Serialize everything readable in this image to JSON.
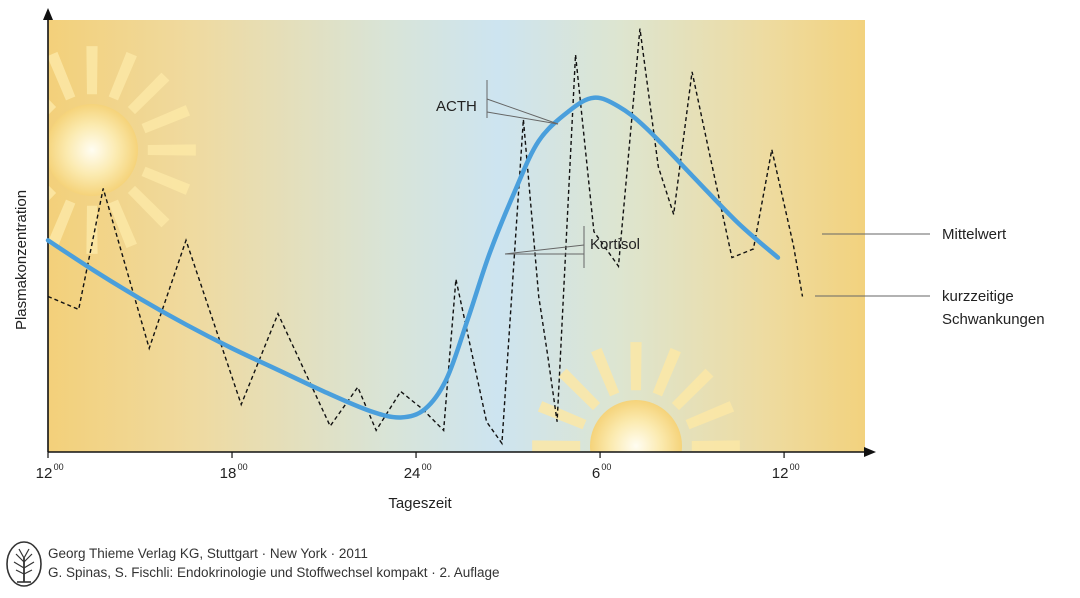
{
  "chart_data": {
    "type": "line",
    "title": "",
    "xlabel": "Tageszeit",
    "ylabel": "Plasmakonzentration",
    "x_ticks": [
      {
        "hour": 0,
        "label": "12",
        "sup": "00"
      },
      {
        "hour": 6,
        "label": "18",
        "sup": "00"
      },
      {
        "hour": 12,
        "label": "24",
        "sup": "00"
      },
      {
        "hour": 18,
        "label": "6",
        "sup": "00"
      },
      {
        "hour": 24,
        "label": "12",
        "sup": "00"
      }
    ],
    "series": [
      {
        "name": "Mittelwert",
        "style": "solid",
        "color": "#4a9fdc",
        "points": [
          [
            0,
            0.49
          ],
          [
            1.5,
            0.42
          ],
          [
            3,
            0.355
          ],
          [
            4.5,
            0.295
          ],
          [
            6,
            0.24
          ],
          [
            7.5,
            0.19
          ],
          [
            9,
            0.14
          ],
          [
            10.5,
            0.095
          ],
          [
            11.5,
            0.08
          ],
          [
            12.3,
            0.1
          ],
          [
            13,
            0.17
          ],
          [
            13.7,
            0.31
          ],
          [
            14.4,
            0.46
          ],
          [
            15.2,
            0.6
          ],
          [
            16,
            0.72
          ],
          [
            17,
            0.79
          ],
          [
            17.8,
            0.82
          ],
          [
            18.6,
            0.8
          ],
          [
            19.5,
            0.75
          ],
          [
            21,
            0.64
          ],
          [
            22.5,
            0.53
          ],
          [
            23.8,
            0.45
          ]
        ]
      },
      {
        "name": "kurzzeitige Schwankungen",
        "style": "dashed",
        "color": "#111111",
        "points": [
          [
            0,
            0.36
          ],
          [
            1,
            0.33
          ],
          [
            1.8,
            0.61
          ],
          [
            3.3,
            0.24
          ],
          [
            4.5,
            0.49
          ],
          [
            6.3,
            0.11
          ],
          [
            7.5,
            0.32
          ],
          [
            9.2,
            0.06
          ],
          [
            10.1,
            0.15
          ],
          [
            10.7,
            0.05
          ],
          [
            11.5,
            0.14
          ],
          [
            12.2,
            0.1
          ],
          [
            12.9,
            0.05
          ],
          [
            13.3,
            0.4
          ],
          [
            14.3,
            0.07
          ],
          [
            14.8,
            0.02
          ],
          [
            15.5,
            0.77
          ],
          [
            16,
            0.36
          ],
          [
            16.3,
            0.22
          ],
          [
            16.6,
            0.07
          ],
          [
            17.2,
            0.92
          ],
          [
            17.8,
            0.51
          ],
          [
            18.6,
            0.43
          ],
          [
            19.3,
            0.98
          ],
          [
            19.9,
            0.66
          ],
          [
            20.4,
            0.55
          ],
          [
            21,
            0.88
          ],
          [
            21.6,
            0.68
          ],
          [
            22.3,
            0.45
          ],
          [
            23,
            0.47
          ],
          [
            23.6,
            0.7
          ],
          [
            24.3,
            0.48
          ],
          [
            24.6,
            0.36
          ]
        ]
      }
    ],
    "labels": {
      "acth": "ACTH",
      "kortisol": "Kortisol",
      "mittelwert": "Mittelwert",
      "schwankungen_line1": "kurzzeitige",
      "schwankungen_line2": "Schwankungen"
    },
    "background_colors": {
      "day": "#f2d27e",
      "night": "#cfe5f0"
    },
    "grid": false,
    "legend": "right"
  },
  "footer": {
    "line1": "Georg Thieme Verlag KG, Stuttgart · New York · 2011",
    "line2": "G. Spinas, S. Fischli: Endokrinologie und Stoffwechsel kompakt · 2. Auflage"
  }
}
